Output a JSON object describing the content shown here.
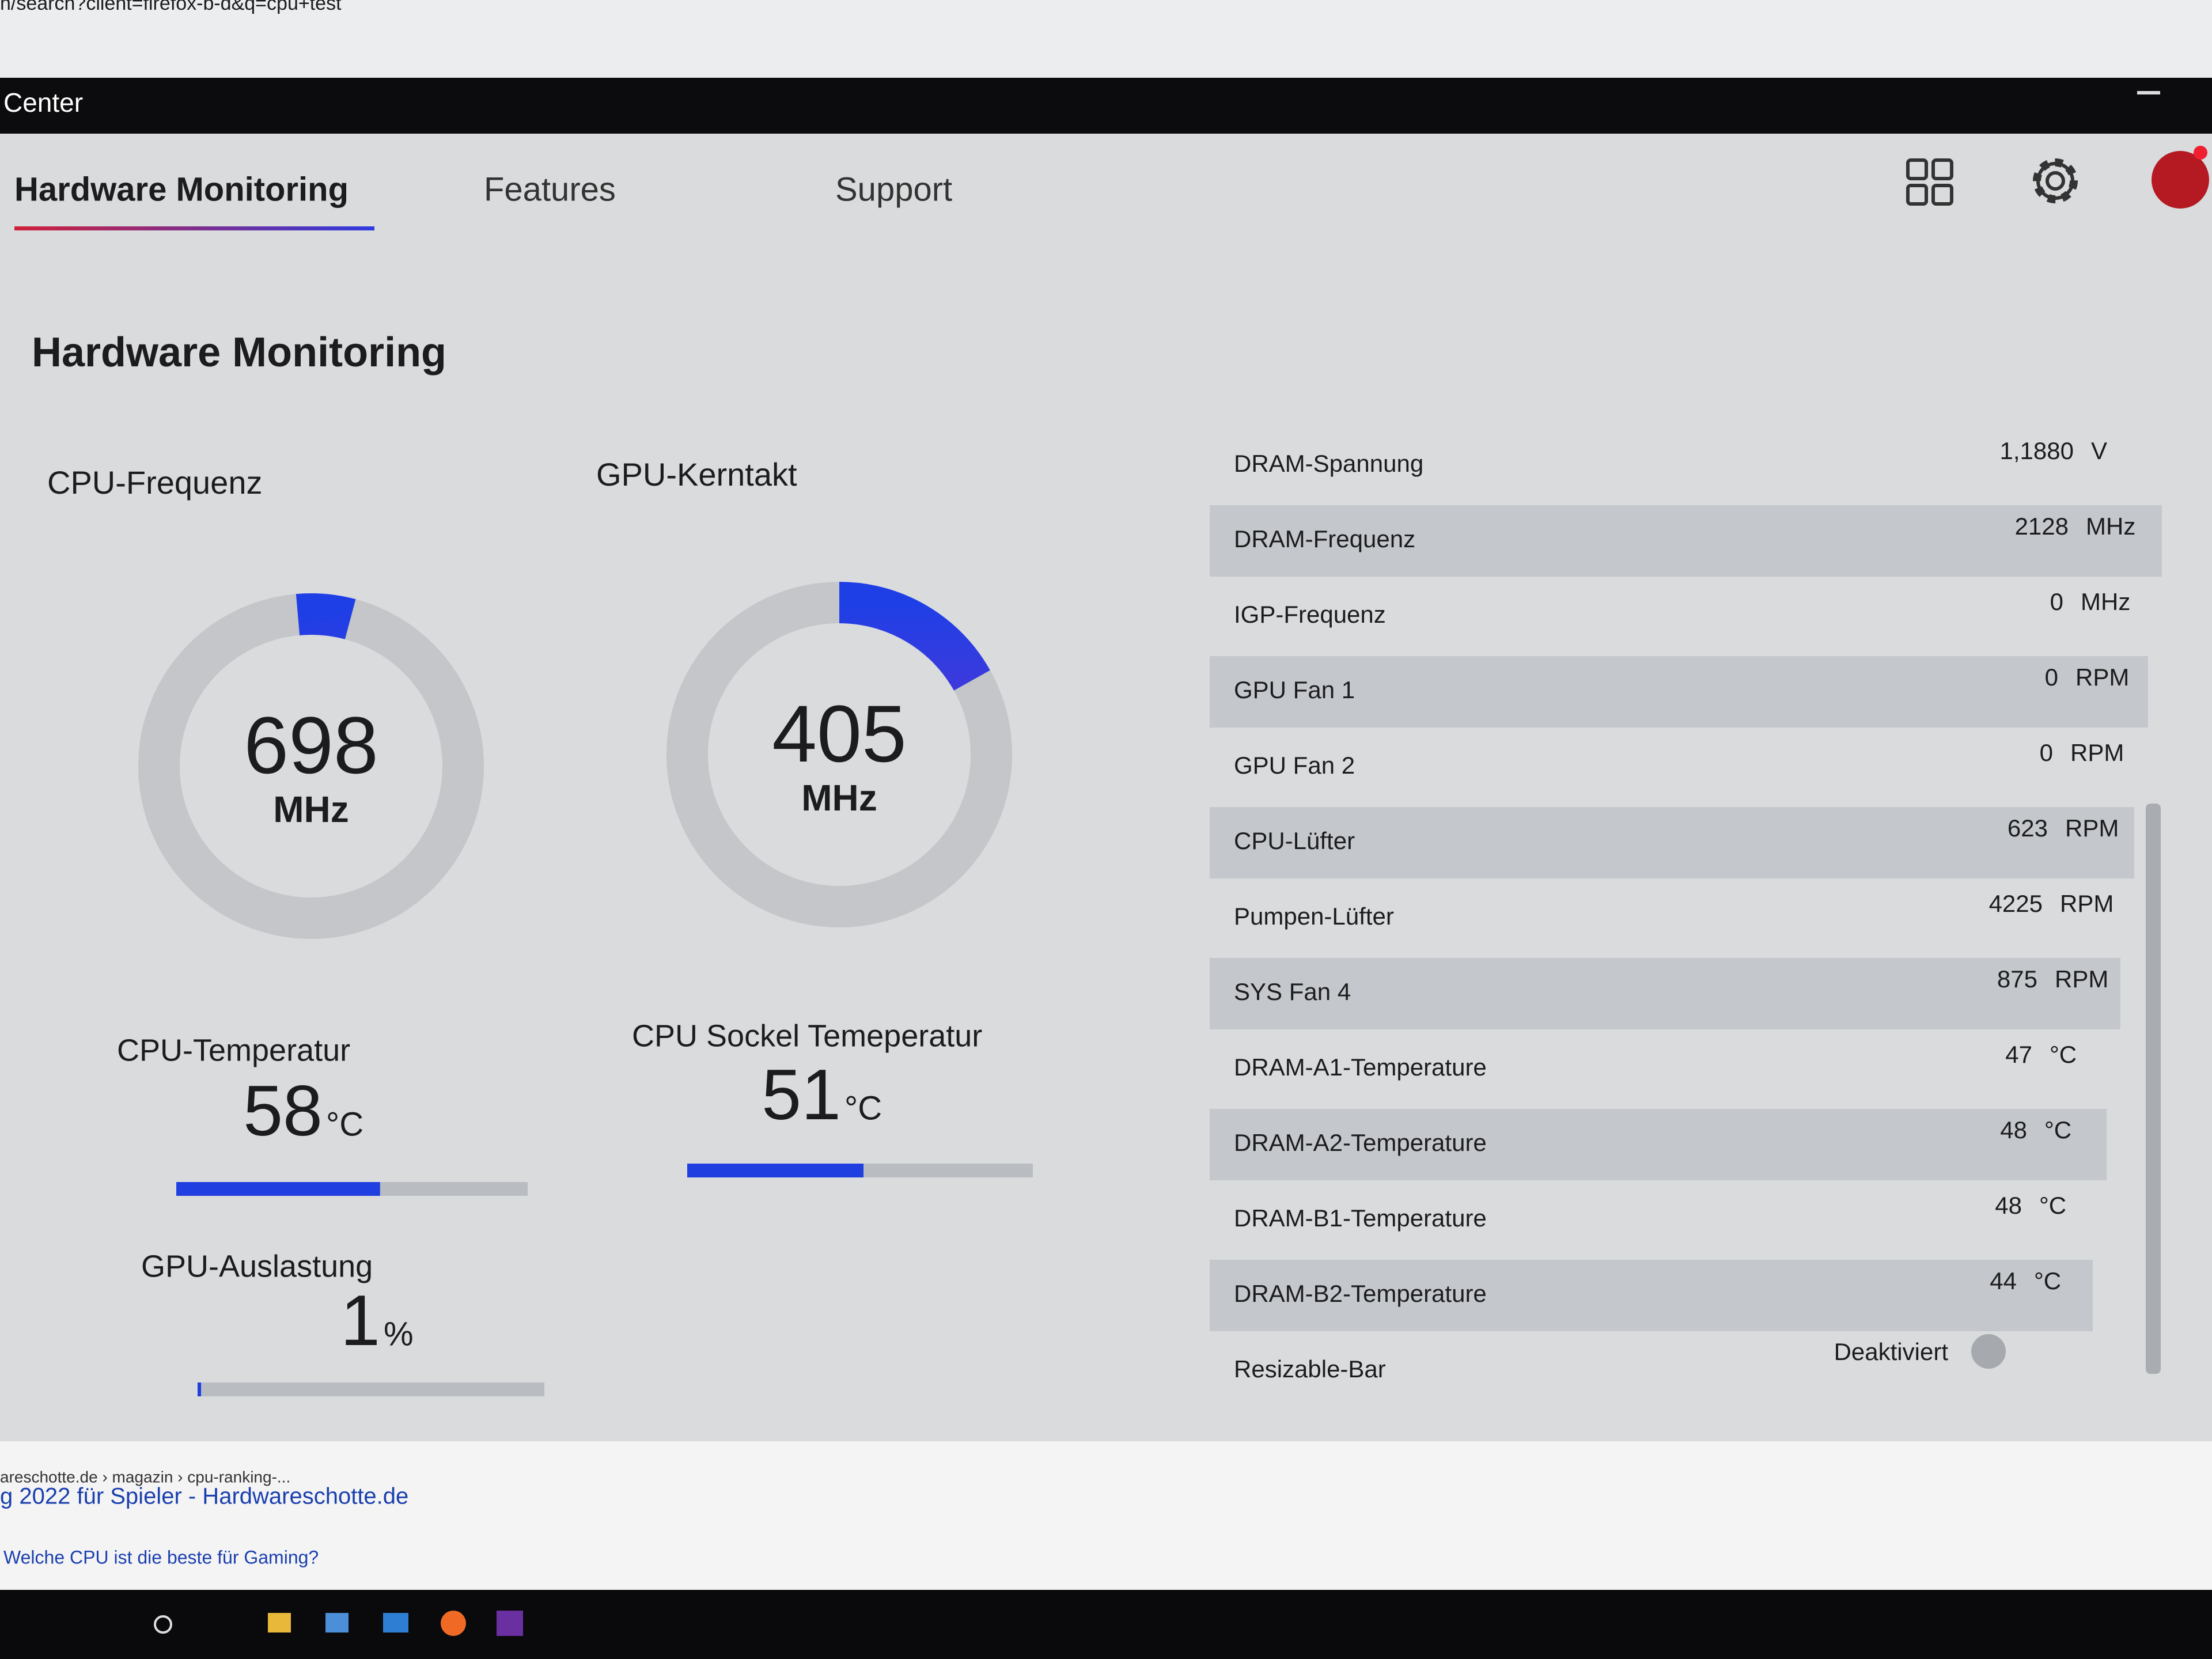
{
  "browser": {
    "url": "n/search?client=firefox-b-d&q=cpu+test",
    "results": [
      "areschotte.de › magazin › cpu-ranking-...",
      "g 2022 für Spieler - Hardwareschotte.de",
      "Welche CPU ist die beste für Gaming?"
    ]
  },
  "window": {
    "title": "Center"
  },
  "tabs": [
    "Hardware Monitoring",
    "Features",
    "Support"
  ],
  "heading": "Hardware Monitoring",
  "gauges": [
    {
      "label": "CPU-Frequenz",
      "value": 698,
      "unit": "MHz"
    },
    {
      "label": "GPU-Kerntakt",
      "value": 405,
      "unit": "MHz"
    }
  ],
  "meters": [
    {
      "label": "CPU-Temperatur",
      "value": 58,
      "unit": "°C"
    },
    {
      "label": "CPU Sockel Temeperatur",
      "value": 51,
      "unit": "°C"
    },
    {
      "label": "GPU-Auslastung",
      "value": 1,
      "unit": "%"
    }
  ],
  "rows": [
    {
      "name": "DRAM-Spannung",
      "value": "1,1880",
      "unit": "V"
    },
    {
      "name": "DRAM-Frequenz",
      "value": 2128,
      "unit": "MHz"
    },
    {
      "name": "IGP-Frequenz",
      "value": 0,
      "unit": "MHz"
    },
    {
      "name": "GPU Fan 1",
      "value": 0,
      "unit": "RPM"
    },
    {
      "name": "GPU Fan 2",
      "value": 0,
      "unit": "RPM"
    },
    {
      "name": "CPU-Lüfter",
      "value": 623,
      "unit": "RPM"
    },
    {
      "name": "Pumpen-Lüfter",
      "value": 4225,
      "unit": "RPM"
    },
    {
      "name": "SYS Fan 4",
      "value": 875,
      "unit": "RPM"
    },
    {
      "name": "DRAM-A1-Temperature",
      "value": 47,
      "unit": "°C"
    },
    {
      "name": "DRAM-A2-Temperature",
      "value": 48,
      "unit": "°C"
    },
    {
      "name": "DRAM-B1-Temperature",
      "value": 48,
      "unit": "°C"
    },
    {
      "name": "DRAM-B2-Temperature",
      "value": 44,
      "unit": "°C"
    },
    {
      "name": "Resizable-Bar",
      "value": "Deaktiviert"
    }
  ]
}
